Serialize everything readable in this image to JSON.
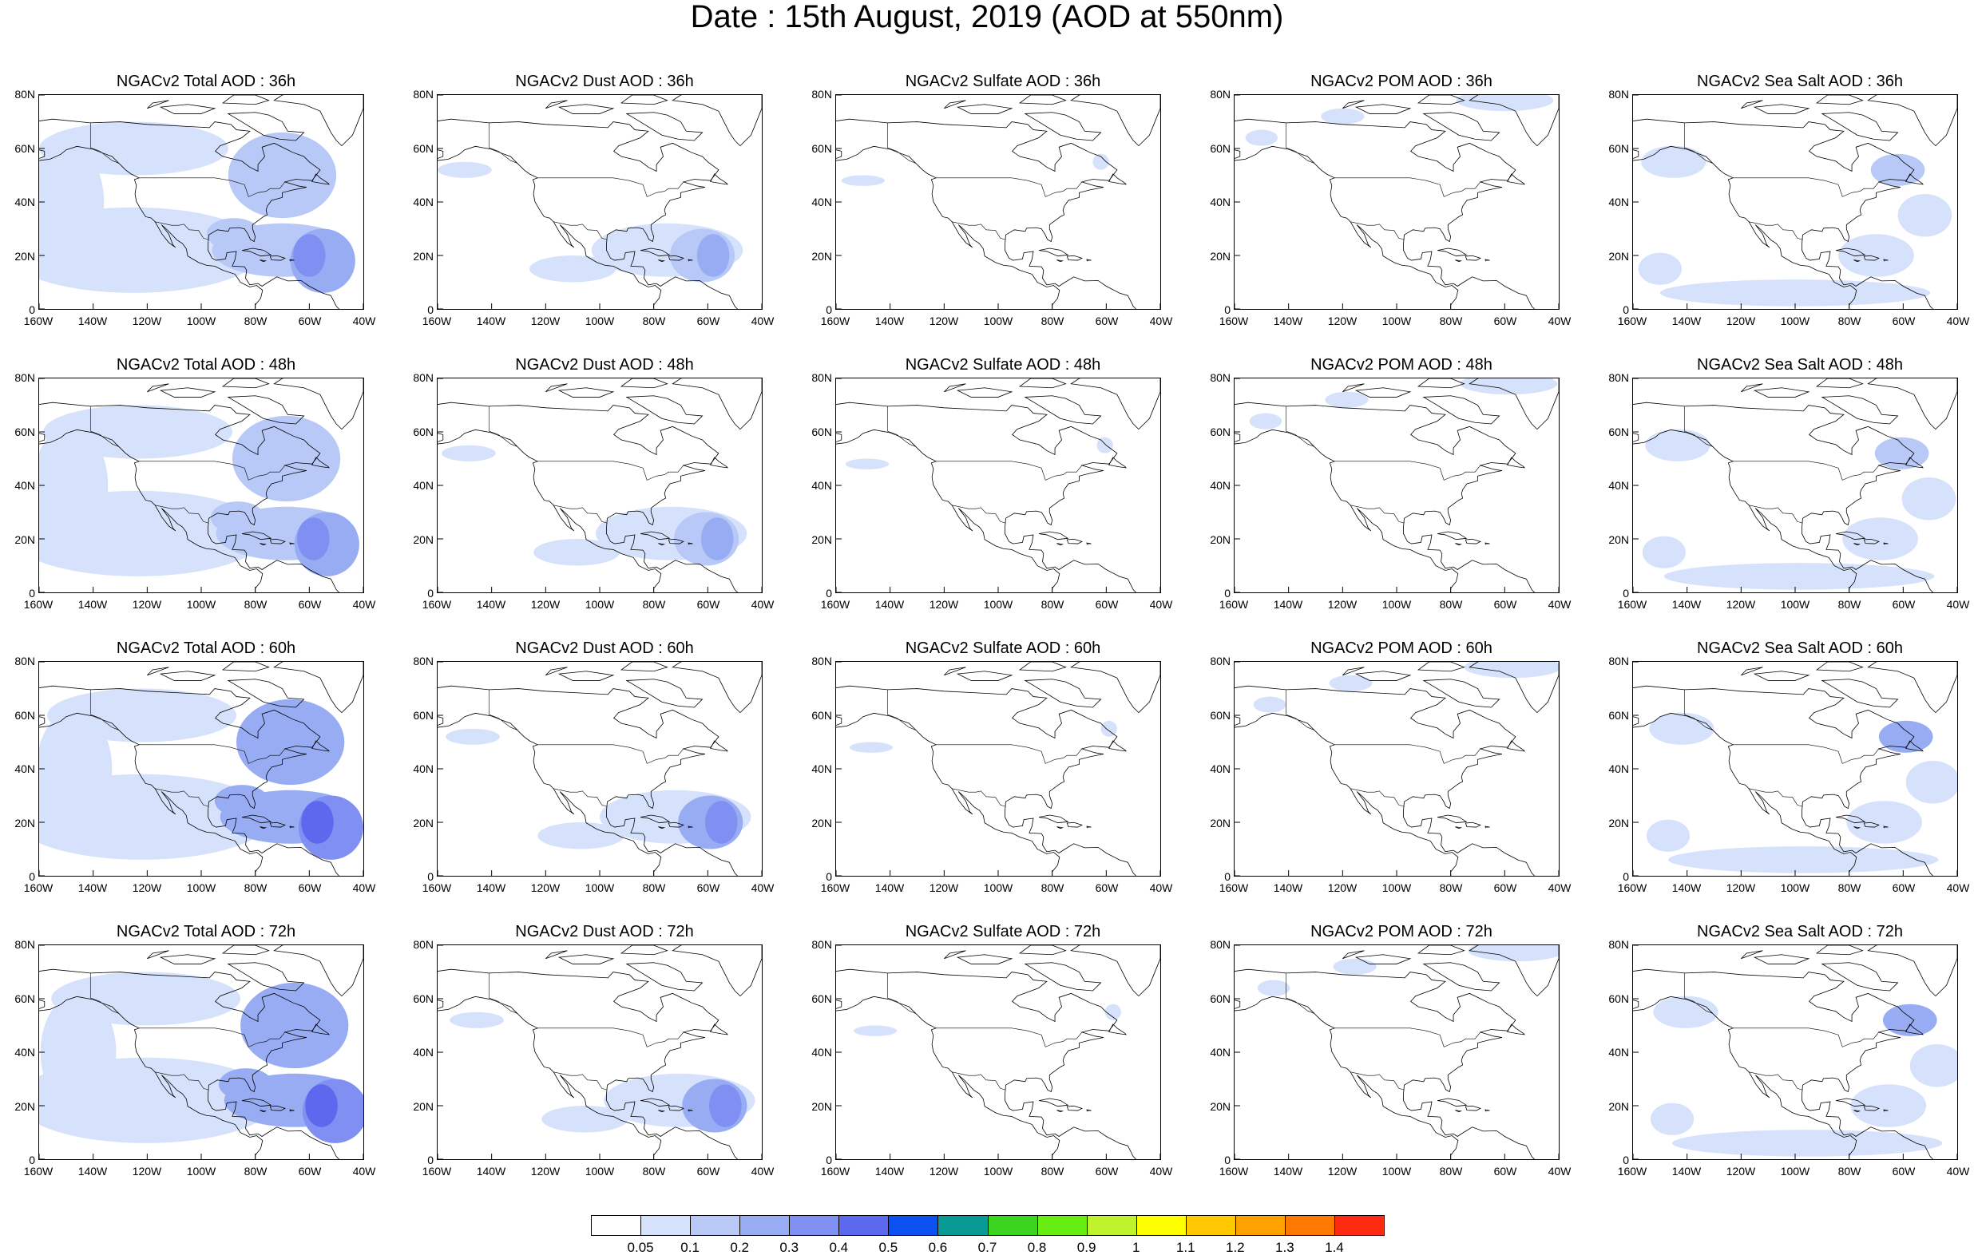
{
  "title": "Date : 15th August, 2019 (AOD at 550nm)",
  "axes": {
    "y_ticks": [
      "80N",
      "60N",
      "40N",
      "20N",
      "0"
    ],
    "x_ticks": [
      "160W",
      "140W",
      "120W",
      "100W",
      "80W",
      "60W",
      "40W"
    ]
  },
  "panels": [
    {
      "title": "NGACv2 Total AOD : 36h",
      "field": "total",
      "hour": 36
    },
    {
      "title": "NGACv2 Dust AOD : 36h",
      "field": "dust",
      "hour": 36
    },
    {
      "title": "NGACv2 Sulfate AOD : 36h",
      "field": "sulfate",
      "hour": 36
    },
    {
      "title": "NGACv2 POM AOD : 36h",
      "field": "pom",
      "hour": 36
    },
    {
      "title": "NGACv2 Sea Salt AOD : 36h",
      "field": "seasalt",
      "hour": 36
    },
    {
      "title": "NGACv2 Total AOD : 48h",
      "field": "total",
      "hour": 48
    },
    {
      "title": "NGACv2 Dust AOD : 48h",
      "field": "dust",
      "hour": 48
    },
    {
      "title": "NGACv2 Sulfate AOD : 48h",
      "field": "sulfate",
      "hour": 48
    },
    {
      "title": "NGACv2 POM AOD : 48h",
      "field": "pom",
      "hour": 48
    },
    {
      "title": "NGACv2 Sea Salt AOD : 48h",
      "field": "seasalt",
      "hour": 48
    },
    {
      "title": "NGACv2 Total AOD : 60h",
      "field": "total",
      "hour": 60
    },
    {
      "title": "NGACv2 Dust AOD : 60h",
      "field": "dust",
      "hour": 60
    },
    {
      "title": "NGACv2 Sulfate AOD : 60h",
      "field": "sulfate",
      "hour": 60
    },
    {
      "title": "NGACv2 POM AOD : 60h",
      "field": "pom",
      "hour": 60
    },
    {
      "title": "NGACv2 Sea Salt AOD : 60h",
      "field": "seasalt",
      "hour": 60
    },
    {
      "title": "NGACv2 Total AOD : 72h",
      "field": "total",
      "hour": 72
    },
    {
      "title": "NGACv2 Dust AOD : 72h",
      "field": "dust",
      "hour": 72
    },
    {
      "title": "NGACv2 Sulfate AOD : 72h",
      "field": "sulfate",
      "hour": 72
    },
    {
      "title": "NGACv2 POM AOD : 72h",
      "field": "pom",
      "hour": 72
    },
    {
      "title": "NGACv2 Sea Salt  AOD : 72h",
      "field": "seasalt",
      "hour": 72
    }
  ],
  "colorbar": {
    "labels": [
      "0.05",
      "0.1",
      "0.2",
      "0.3",
      "0.4",
      "0.5",
      "0.6",
      "0.7",
      "0.8",
      "0.9",
      "1",
      "1.1",
      "1.2",
      "1.3",
      "1.4"
    ],
    "colors": [
      "#ffffff",
      "#d6e2fb",
      "#b8c9f7",
      "#98acf4",
      "#8090f2",
      "#5c68ee",
      "#0a50f2",
      "#0a9a96",
      "#3bd41e",
      "#66ee11",
      "#bff22c",
      "#ffff00",
      "#ffc800",
      "#ffa200",
      "#ff7800",
      "#ff2a10"
    ]
  }
}
